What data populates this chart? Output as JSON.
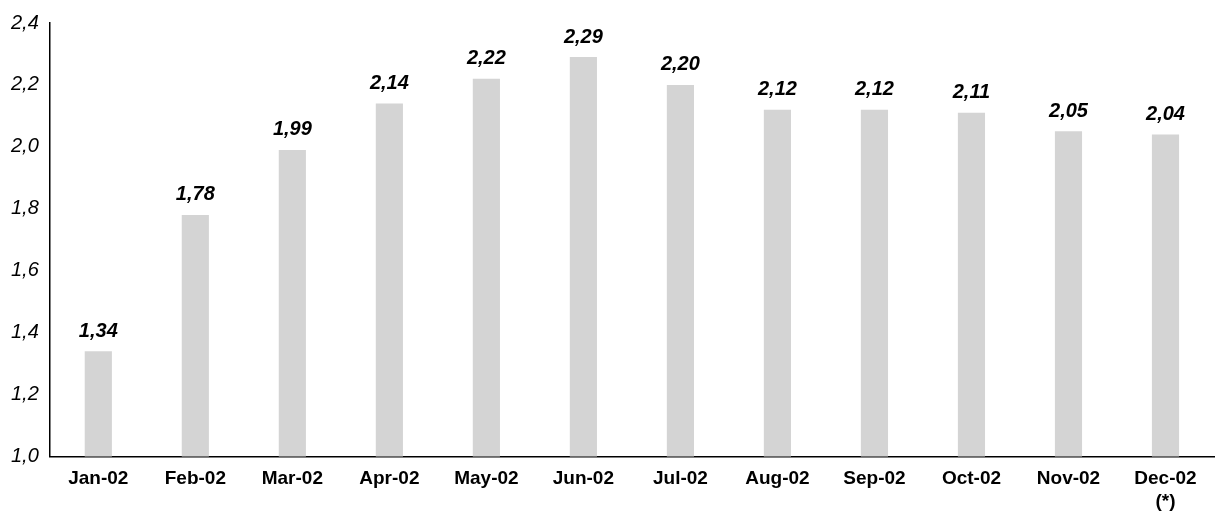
{
  "chart_data": {
    "type": "bar",
    "categories": [
      "Jan-02",
      "Feb-02",
      "Mar-02",
      "Apr-02",
      "May-02",
      "Jun-02",
      "Jul-02",
      "Aug-02",
      "Sep-02",
      "Oct-02",
      "Nov-02",
      "Dec-02\n(*)"
    ],
    "values": [
      1.34,
      1.78,
      1.99,
      2.14,
      2.22,
      2.29,
      2.2,
      2.12,
      2.12,
      2.11,
      2.05,
      2.04
    ],
    "value_labels": [
      "1,34",
      "1,78",
      "1,99",
      "2,14",
      "2,22",
      "2,29",
      "2,20",
      "2,12",
      "2,12",
      "2,11",
      "2,05",
      "2,04"
    ],
    "color": "#d4d4d4",
    "ylim": [
      1.0,
      2.4
    ],
    "yticks": [
      {
        "value": 1.0,
        "label": "1,0"
      },
      {
        "value": 1.2,
        "label": "1,2"
      },
      {
        "value": 1.4,
        "label": "1,4"
      },
      {
        "value": 1.6,
        "label": "1,6"
      },
      {
        "value": 1.8,
        "label": "1,8"
      },
      {
        "value": 2.0,
        "label": "2,0"
      },
      {
        "value": 2.2,
        "label": "2,2"
      },
      {
        "value": 2.4,
        "label": "2,4"
      }
    ],
    "grid": false,
    "legend": false
  }
}
